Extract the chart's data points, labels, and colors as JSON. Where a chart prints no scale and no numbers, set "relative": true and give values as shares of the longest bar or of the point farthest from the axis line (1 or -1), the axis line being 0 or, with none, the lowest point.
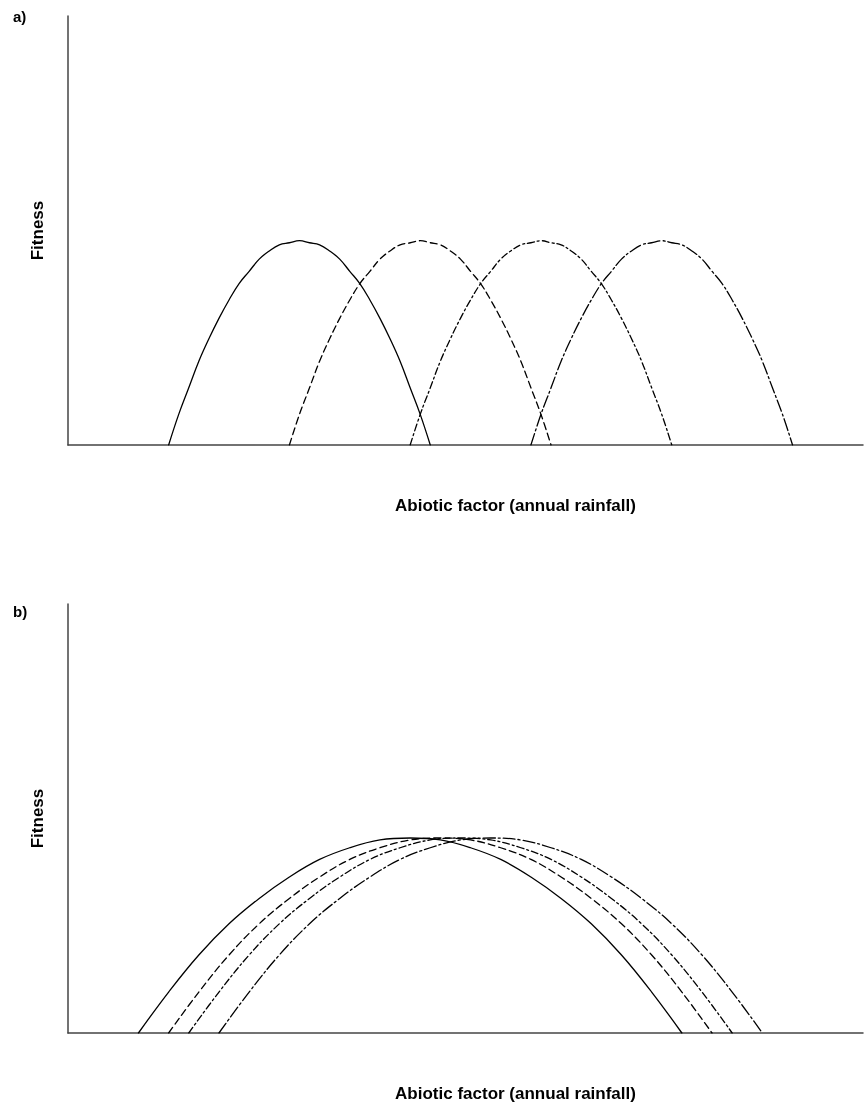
{
  "chart_data": [
    {
      "type": "line",
      "title": "a)",
      "xlabel": "Abiotic factor (annual rainfall)",
      "ylabel": "Fitness",
      "relative": true,
      "marker": "none",
      "categories": [
        null,
        null,
        null,
        null,
        null,
        null,
        null,
        null,
        null,
        null,
        null,
        null,
        null,
        null,
        null,
        null,
        null,
        null,
        null,
        null,
        null,
        null,
        null,
        null,
        null,
        null,
        null,
        null,
        null,
        null,
        null,
        null,
        null,
        null,
        null,
        null,
        null,
        null,
        null,
        null,
        null,
        null,
        null,
        null,
        null,
        null,
        null,
        null,
        null,
        null,
        null,
        null,
        null,
        null,
        null,
        null,
        null,
        null,
        null,
        null,
        null,
        null,
        null,
        null,
        null,
        null,
        null,
        null,
        null,
        null,
        null,
        null,
        null,
        null,
        null,
        null,
        null,
        null,
        null,
        null
      ],
      "series": [
        {
          "color": "#000000",
          "line_style": "solid",
          "values": [
            null,
            null,
            null,
            null,
            null,
            null,
            null,
            null,
            null,
            null,
            0,
            0.15,
            0.28,
            0.41,
            0.52,
            0.62,
            0.71,
            0.79,
            0.85,
            0.91,
            0.95,
            0.98,
            0.99,
            1,
            0.99,
            0.98,
            0.95,
            0.91,
            0.85,
            0.79,
            0.71,
            0.62,
            0.52,
            0.41,
            0.28,
            0.15,
            0,
            null,
            null,
            null,
            null,
            null,
            null,
            null,
            null,
            null,
            null,
            null,
            null,
            null,
            null,
            null,
            null,
            null,
            null,
            null,
            null,
            null,
            null,
            null,
            null,
            null,
            null,
            null,
            null,
            null,
            null,
            null,
            null,
            null,
            null,
            null,
            null,
            null,
            null,
            null,
            null,
            null,
            null,
            null
          ]
        },
        {
          "color": "#000000",
          "line_style": "dashed",
          "values": [
            null,
            null,
            null,
            null,
            null,
            null,
            null,
            null,
            null,
            null,
            null,
            null,
            null,
            null,
            null,
            null,
            null,
            null,
            null,
            null,
            null,
            null,
            0,
            0.15,
            0.28,
            0.41,
            0.52,
            0.62,
            0.71,
            0.79,
            0.85,
            0.91,
            0.95,
            0.98,
            0.99,
            1,
            0.99,
            0.98,
            0.95,
            0.91,
            0.85,
            0.79,
            0.71,
            0.62,
            0.52,
            0.41,
            0.28,
            0.15,
            0,
            null,
            null,
            null,
            null,
            null,
            null,
            null,
            null,
            null,
            null,
            null,
            null,
            null,
            null,
            null,
            null,
            null,
            null,
            null,
            null,
            null,
            null,
            null,
            null,
            null,
            null,
            null,
            null,
            null,
            null,
            null
          ]
        },
        {
          "color": "#000000",
          "line_style": "dashdot",
          "values": [
            null,
            null,
            null,
            null,
            null,
            null,
            null,
            null,
            null,
            null,
            null,
            null,
            null,
            null,
            null,
            null,
            null,
            null,
            null,
            null,
            null,
            null,
            null,
            null,
            null,
            null,
            null,
            null,
            null,
            null,
            null,
            null,
            null,
            null,
            0,
            0.15,
            0.28,
            0.41,
            0.52,
            0.62,
            0.71,
            0.79,
            0.85,
            0.91,
            0.95,
            0.98,
            0.99,
            1,
            0.99,
            0.98,
            0.95,
            0.91,
            0.85,
            0.79,
            0.71,
            0.62,
            0.52,
            0.41,
            0.28,
            0.15,
            0,
            null,
            null,
            null,
            null,
            null,
            null,
            null,
            null,
            null,
            null,
            null,
            null,
            null,
            null,
            null,
            null,
            null,
            null,
            null
          ]
        },
        {
          "color": "#000000",
          "line_style": "longdashdot",
          "values": [
            null,
            null,
            null,
            null,
            null,
            null,
            null,
            null,
            null,
            null,
            null,
            null,
            null,
            null,
            null,
            null,
            null,
            null,
            null,
            null,
            null,
            null,
            null,
            null,
            null,
            null,
            null,
            null,
            null,
            null,
            null,
            null,
            null,
            null,
            null,
            null,
            null,
            null,
            null,
            null,
            null,
            null,
            null,
            null,
            null,
            null,
            0,
            0.15,
            0.28,
            0.41,
            0.52,
            0.62,
            0.71,
            0.79,
            0.85,
            0.91,
            0.95,
            0.98,
            0.99,
            1,
            0.99,
            0.98,
            0.95,
            0.91,
            0.85,
            0.79,
            0.71,
            0.62,
            0.52,
            0.41,
            0.28,
            0.15,
            0,
            null,
            null,
            null,
            null,
            null,
            null,
            null
          ]
        }
      ]
    },
    {
      "type": "line",
      "title": "b)",
      "xlabel": "Abiotic factor (annual rainfall)",
      "ylabel": "Fitness",
      "relative": true,
      "marker": "none",
      "categories": [
        null,
        null,
        null,
        null,
        null,
        null,
        null,
        null,
        null,
        null,
        null,
        null,
        null,
        null,
        null,
        null,
        null,
        null,
        null,
        null,
        null,
        null,
        null,
        null,
        null,
        null,
        null,
        null,
        null,
        null,
        null,
        null,
        null,
        null,
        null,
        null,
        null,
        null,
        null,
        null,
        null,
        null,
        null,
        null,
        null,
        null,
        null,
        null,
        null,
        null,
        null,
        null,
        null,
        null,
        null,
        null,
        null,
        null,
        null,
        null,
        null,
        null,
        null,
        null,
        null,
        null,
        null,
        null,
        null,
        null,
        null,
        null,
        null,
        null,
        null,
        null,
        null,
        null,
        null,
        null
      ],
      "series": [
        {
          "color": "#000000",
          "line_style": "solid",
          "values": [
            null,
            null,
            null,
            null,
            null,
            null,
            null,
            0,
            null,
            null,
            0.21,
            null,
            null,
            0.4,
            null,
            null,
            0.56,
            null,
            null,
            0.69,
            null,
            null,
            0.8,
            null,
            null,
            0.89,
            null,
            null,
            0.95,
            null,
            null,
            0.99,
            null,
            null,
            1,
            null,
            null,
            0.99,
            null,
            null,
            0.95,
            null,
            null,
            0.89,
            null,
            null,
            0.8,
            null,
            null,
            0.69,
            null,
            null,
            0.56,
            null,
            null,
            0.4,
            null,
            null,
            0.21,
            null,
            null,
            0,
            null,
            null,
            null,
            null,
            null,
            null,
            null,
            null,
            null,
            null,
            null,
            null,
            null,
            null,
            null,
            null,
            null,
            null
          ]
        },
        {
          "color": "#000000",
          "line_style": "dashed",
          "values": [
            null,
            null,
            null,
            null,
            null,
            null,
            null,
            null,
            null,
            null,
            0,
            null,
            null,
            0.21,
            null,
            null,
            0.4,
            null,
            null,
            0.56,
            null,
            null,
            0.69,
            null,
            null,
            0.8,
            null,
            null,
            0.89,
            null,
            null,
            0.95,
            null,
            null,
            0.99,
            null,
            null,
            1,
            null,
            null,
            0.99,
            null,
            null,
            0.95,
            null,
            null,
            0.89,
            null,
            null,
            0.8,
            null,
            null,
            0.69,
            null,
            null,
            0.56,
            null,
            null,
            0.4,
            null,
            null,
            0.21,
            null,
            null,
            0,
            null,
            null,
            null,
            null,
            null,
            null,
            null,
            null,
            null,
            null,
            null,
            null,
            null,
            null,
            null
          ]
        },
        {
          "color": "#000000",
          "line_style": "dashdot",
          "values": [
            null,
            null,
            null,
            null,
            null,
            null,
            null,
            null,
            null,
            null,
            null,
            null,
            0,
            null,
            null,
            0.21,
            null,
            null,
            0.4,
            null,
            null,
            0.56,
            null,
            null,
            0.69,
            null,
            null,
            0.8,
            null,
            null,
            0.89,
            null,
            null,
            0.95,
            null,
            null,
            0.99,
            null,
            null,
            1,
            null,
            null,
            0.99,
            null,
            null,
            0.95,
            null,
            null,
            0.89,
            null,
            null,
            0.8,
            null,
            null,
            0.69,
            null,
            null,
            0.56,
            null,
            null,
            0.4,
            null,
            null,
            0.21,
            null,
            null,
            0,
            null,
            null,
            null,
            null,
            null,
            null,
            null,
            null,
            null,
            null,
            null,
            null,
            null
          ]
        },
        {
          "color": "#000000",
          "line_style": "longdashdot",
          "values": [
            null,
            null,
            null,
            null,
            null,
            null,
            null,
            null,
            null,
            null,
            null,
            null,
            null,
            null,
            null,
            0,
            null,
            null,
            0.21,
            null,
            null,
            0.4,
            null,
            null,
            0.56,
            null,
            null,
            0.69,
            null,
            null,
            0.8,
            null,
            null,
            0.89,
            null,
            null,
            0.95,
            null,
            null,
            0.99,
            null,
            null,
            1,
            null,
            null,
            0.99,
            null,
            null,
            0.95,
            null,
            null,
            0.89,
            null,
            null,
            0.8,
            null,
            null,
            0.69,
            null,
            null,
            0.56,
            null,
            null,
            0.4,
            null,
            null,
            0.21,
            null,
            null,
            0,
            null,
            null,
            null,
            null,
            null,
            null,
            null,
            null,
            null,
            null
          ]
        }
      ]
    }
  ]
}
